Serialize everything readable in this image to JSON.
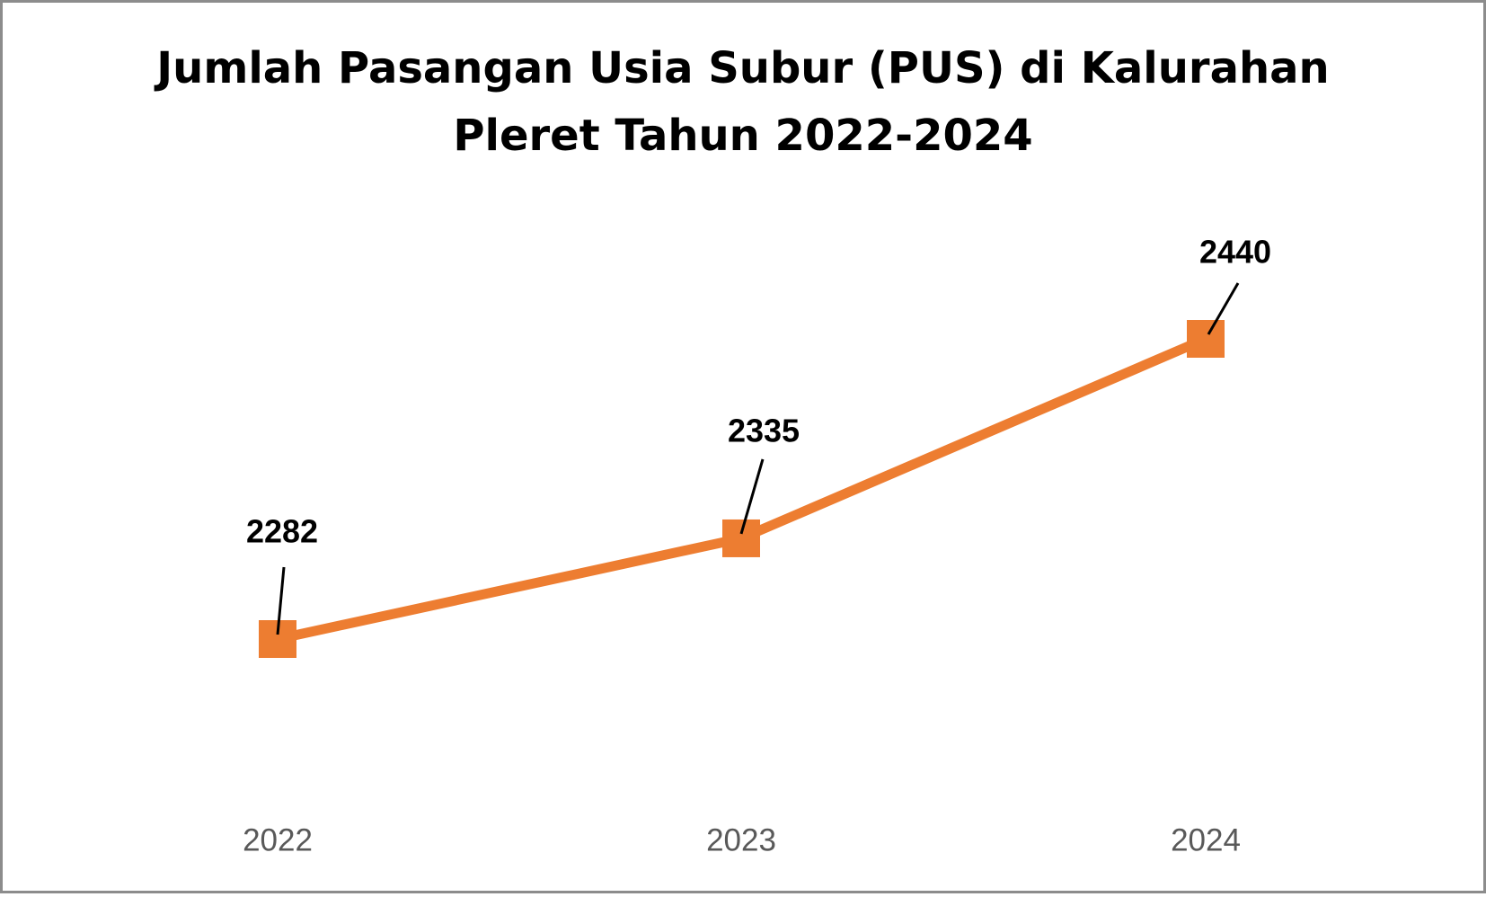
{
  "chart_data": {
    "type": "line",
    "title": [
      "Jumlah Pasangan Usia Subur (PUS) di Kalurahan",
      "Pleret Tahun 2022-2024"
    ],
    "categories": [
      "2022",
      "2023",
      "2024"
    ],
    "values": [
      2282,
      2335,
      2440
    ],
    "color": "#ED7D31",
    "marker": "square"
  }
}
